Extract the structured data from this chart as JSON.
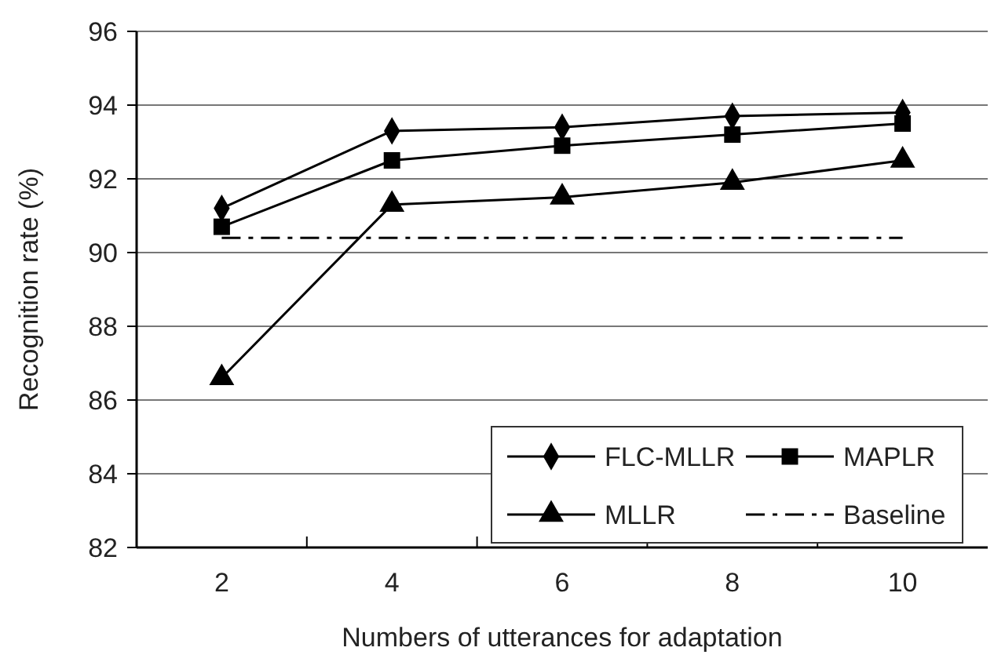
{
  "chart_data": {
    "type": "line",
    "xlabel": "Numbers of utterances for adaptation",
    "ylabel": "Recognition rate (%)",
    "categories": [
      "2",
      "4",
      "6",
      "8",
      "10"
    ],
    "series": [
      {
        "name": "FLC-MLLR",
        "color": "#000000",
        "marker": "diamond",
        "values": [
          91.2,
          93.3,
          93.4,
          93.7,
          93.8
        ]
      },
      {
        "name": "MAPLR",
        "color": "#000000",
        "marker": "square",
        "values": [
          90.7,
          92.5,
          92.9,
          93.2,
          93.5
        ]
      },
      {
        "name": "MLLR",
        "color": "#000000",
        "marker": "triangle",
        "values": [
          86.6,
          91.3,
          91.5,
          91.9,
          92.5
        ]
      },
      {
        "name": "Baseline",
        "color": "#000000",
        "marker": "none",
        "line_style": "dashed",
        "values": [
          90.4,
          90.4,
          90.4,
          90.4,
          90.4
        ]
      }
    ],
    "ylim": [
      82,
      96
    ],
    "yticks": [
      82,
      84,
      86,
      88,
      90,
      92,
      94,
      96
    ],
    "grid": "y",
    "legend": "bottom right"
  }
}
